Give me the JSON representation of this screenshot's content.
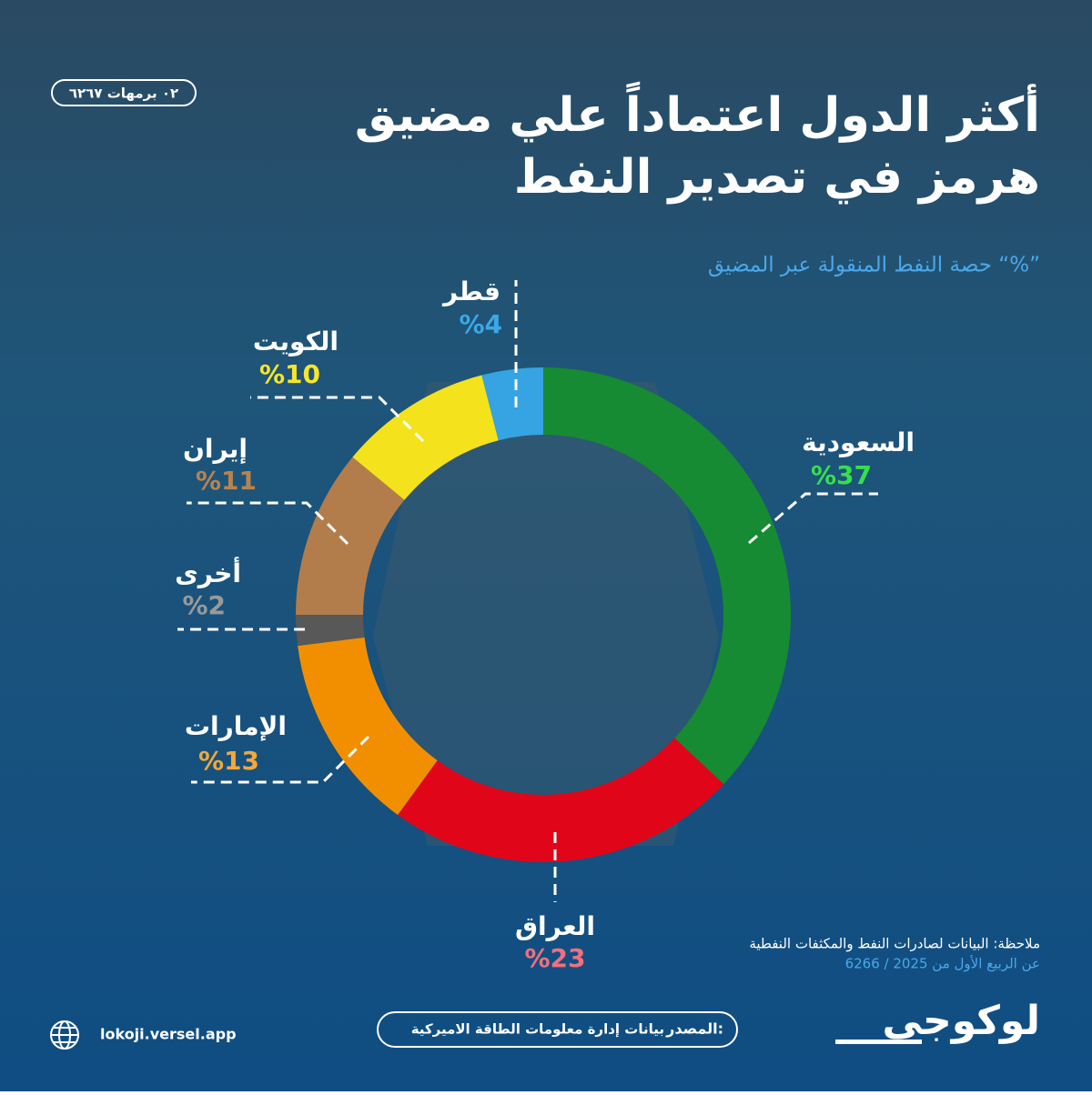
{
  "header": {
    "date": "٠٢ برمهات ٦٢٦٧"
  },
  "chart_data": {
    "type": "pie",
    "donut": true,
    "title": [
      "أكثر الدول اعتماداً علي مضيق",
      "هرمز في تصدير النفط"
    ],
    "subtitle": "حصة النفط المنقولة عبر المضيق “%”",
    "categories": [
      "السعودية",
      "العراق",
      "الإمارات",
      "أخرى",
      "إيران",
      "الكويت",
      "قطر"
    ],
    "values": [
      37,
      23,
      13,
      2,
      11,
      10,
      4
    ],
    "value_labels": [
      "%37",
      "%23",
      "%13",
      "%2",
      "%11",
      "%10",
      "%4"
    ],
    "colors": [
      "#168b33",
      "#e1051a",
      "#f28f00",
      "#585858",
      "#b27d4b",
      "#f4e21c",
      "#36a3e2"
    ],
    "label_colors": [
      "#35e04b",
      "#f0707e",
      "#f2a83a",
      "#9a9a9a",
      "#b9834e",
      "#f7e62a",
      "#3ba8e6"
    ]
  },
  "footer": {
    "note": [
      "ملاحظة: البيانات لصادرات النفط والمكثفات النفطية",
      "عن الربيع الأول من 2025 / 6266"
    ],
    "source_label": "المصدر:",
    "source": "بيانات إدارة معلومات الطاقة الاميركية",
    "website": "lokoji.versel.app",
    "logo": "لوكوجي"
  }
}
